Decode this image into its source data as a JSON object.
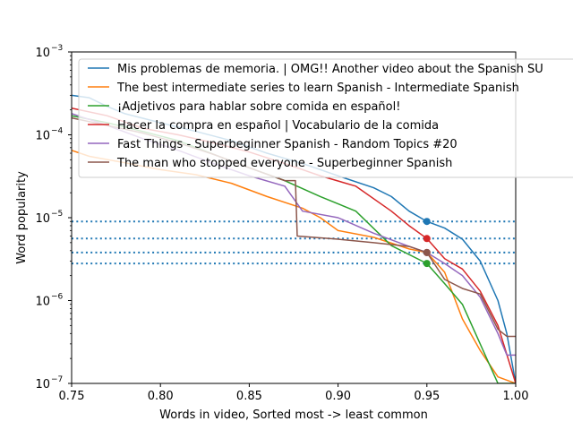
{
  "chart_data": {
    "type": "line",
    "title": "",
    "xlabel": "Words in video, Sorted most -> least common",
    "ylabel": "Word popularity",
    "xlim": [
      0.75,
      1.0
    ],
    "ylim": [
      1e-07,
      0.001
    ],
    "yscale": "log",
    "x_ticks": [
      {
        "value": 0.75,
        "label": "0.75"
      },
      {
        "value": 0.8,
        "label": "0.80"
      },
      {
        "value": 0.85,
        "label": "0.85"
      },
      {
        "value": 0.9,
        "label": "0.90"
      },
      {
        "value": 0.95,
        "label": "0.95"
      },
      {
        "value": 1.0,
        "label": "1.00"
      }
    ],
    "y_ticks": [
      {
        "value": 1e-07,
        "base": "10",
        "exp": "−7"
      },
      {
        "value": 1e-06,
        "base": "10",
        "exp": "−6"
      },
      {
        "value": 1e-05,
        "base": "10",
        "exp": "−5"
      },
      {
        "value": 0.0001,
        "base": "10",
        "exp": "−4"
      },
      {
        "value": 0.001,
        "base": "10",
        "exp": "−3"
      }
    ],
    "legend_position": "upper-right",
    "grid": false,
    "reference_lines": [
      {
        "y": 9e-06,
        "color": "#1f77b4",
        "style": "dotted"
      },
      {
        "y": 5.6e-06,
        "color": "#1f77b4",
        "style": "dotted"
      },
      {
        "y": 3.8e-06,
        "color": "#1f77b4",
        "style": "dotted"
      },
      {
        "y": 2.8e-06,
        "color": "#1f77b4",
        "style": "dotted"
      }
    ],
    "series": [
      {
        "name": "Mis problemas de memoria. | OMG!! Another video about the Spanish SU",
        "color": "#1f77b4",
        "marker": {
          "x": 0.95,
          "y": 9e-06
        },
        "points": [
          [
            0.75,
            0.0003
          ],
          [
            0.76,
            0.00028
          ],
          [
            0.77,
            0.00022
          ],
          [
            0.78,
            0.00018
          ],
          [
            0.8,
            0.00014
          ],
          [
            0.82,
            0.00011
          ],
          [
            0.84,
            8.5e-05
          ],
          [
            0.86,
            6e-05
          ],
          [
            0.88,
            4.5e-05
          ],
          [
            0.9,
            3.2e-05
          ],
          [
            0.92,
            2.3e-05
          ],
          [
            0.93,
            1.8e-05
          ],
          [
            0.94,
            1.2e-05
          ],
          [
            0.95,
            9e-06
          ],
          [
            0.96,
            7.5e-06
          ],
          [
            0.97,
            5.5e-06
          ],
          [
            0.98,
            3e-06
          ],
          [
            0.99,
            1e-06
          ],
          [
            0.995,
            4e-07
          ],
          [
            1.0,
            1e-07
          ]
        ]
      },
      {
        "name": "The best intermediate series to learn Spanish - Intermediate Spanish",
        "color": "#ff7f0e",
        "marker": {
          "x": 0.95,
          "y": 3.8e-06
        },
        "points": [
          [
            0.75,
            6.5e-05
          ],
          [
            0.76,
            5.5e-05
          ],
          [
            0.78,
            4.6e-05
          ],
          [
            0.8,
            3.8e-05
          ],
          [
            0.82,
            3.3e-05
          ],
          [
            0.84,
            2.6e-05
          ],
          [
            0.86,
            1.8e-05
          ],
          [
            0.88,
            1.3e-05
          ],
          [
            0.89,
            1e-05
          ],
          [
            0.9,
            7e-06
          ],
          [
            0.92,
            5.8e-06
          ],
          [
            0.94,
            4.2e-06
          ],
          [
            0.95,
            3.8e-06
          ],
          [
            0.96,
            2.2e-06
          ],
          [
            0.97,
            6e-07
          ],
          [
            0.98,
            2.5e-07
          ],
          [
            0.99,
            1.2e-07
          ],
          [
            1.0,
            1e-07
          ]
        ]
      },
      {
        "name": "¡Adjetivos para hablar sobre comida en español!",
        "color": "#2ca02c",
        "marker": {
          "x": 0.95,
          "y": 2.8e-06
        },
        "points": [
          [
            0.75,
            0.00017
          ],
          [
            0.77,
            0.00014
          ],
          [
            0.79,
            0.00011
          ],
          [
            0.81,
            8.5e-05
          ],
          [
            0.83,
            5.8e-05
          ],
          [
            0.85,
            4e-05
          ],
          [
            0.87,
            2.8e-05
          ],
          [
            0.89,
            1.8e-05
          ],
          [
            0.91,
            1.2e-05
          ],
          [
            0.93,
            4.6e-06
          ],
          [
            0.95,
            2.8e-06
          ],
          [
            0.96,
            1.6e-06
          ],
          [
            0.97,
            9e-07
          ],
          [
            0.98,
            3e-07
          ],
          [
            0.99,
            1e-07
          ],
          [
            1.0,
            1e-07
          ]
        ]
      },
      {
        "name": "Hacer la compra en español | Vocabulario de la comida",
        "color": "#d62728",
        "marker": {
          "x": 0.95,
          "y": 5.6e-06
        },
        "points": [
          [
            0.75,
            0.00021
          ],
          [
            0.77,
            0.00017
          ],
          [
            0.79,
            0.00012
          ],
          [
            0.81,
            0.0001
          ],
          [
            0.83,
            8e-05
          ],
          [
            0.85,
            6.2e-05
          ],
          [
            0.87,
            4.5e-05
          ],
          [
            0.89,
            3.2e-05
          ],
          [
            0.91,
            2.4e-05
          ],
          [
            0.93,
            1.2e-05
          ],
          [
            0.94,
            8e-06
          ],
          [
            0.95,
            5.6e-06
          ],
          [
            0.96,
            3.2e-06
          ],
          [
            0.97,
            2.4e-06
          ],
          [
            0.98,
            1.3e-06
          ],
          [
            0.99,
            5e-07
          ],
          [
            1.0,
            1e-07
          ]
        ]
      },
      {
        "name": "Fast Things - Superbeginner Spanish - Random Topics #20",
        "color": "#9467bd",
        "marker": {
          "x": 0.95,
          "y": 3.8e-06
        },
        "points": [
          [
            0.75,
            0.00018
          ],
          [
            0.77,
            0.00013
          ],
          [
            0.79,
            9e-05
          ],
          [
            0.81,
            6.5e-05
          ],
          [
            0.83,
            4.5e-05
          ],
          [
            0.85,
            3.2e-05
          ],
          [
            0.87,
            2.4e-05
          ],
          [
            0.88,
            1.2e-05
          ],
          [
            0.9,
            1e-05
          ],
          [
            0.92,
            6.5e-06
          ],
          [
            0.94,
            4.5e-06
          ],
          [
            0.95,
            3.8e-06
          ],
          [
            0.96,
            2.8e-06
          ],
          [
            0.97,
            2e-06
          ],
          [
            0.98,
            1.1e-06
          ],
          [
            0.99,
            4e-07
          ],
          [
            0.995,
            2.2e-07
          ],
          [
            1.0,
            2.2e-07
          ]
        ]
      },
      {
        "name": "The man who stopped everyone - Superbeginner Spanish",
        "color": "#8c564b",
        "marker": {
          "x": 0.95,
          "y": 3.8e-06
        },
        "points": [
          [
            0.75,
            0.00016
          ],
          [
            0.77,
            0.00013
          ],
          [
            0.79,
            0.000105
          ],
          [
            0.81,
            8e-05
          ],
          [
            0.83,
            5.8e-05
          ],
          [
            0.85,
            4e-05
          ],
          [
            0.87,
            2.8e-05
          ],
          [
            0.876,
            2.8e-05
          ],
          [
            0.877,
            6e-06
          ],
          [
            0.9,
            5.5e-06
          ],
          [
            0.92,
            5e-06
          ],
          [
            0.94,
            4.5e-06
          ],
          [
            0.95,
            3.8e-06
          ],
          [
            0.96,
            1.8e-06
          ],
          [
            0.97,
            1.4e-06
          ],
          [
            0.98,
            1.2e-06
          ],
          [
            0.99,
            4.5e-07
          ],
          [
            0.995,
            3.7e-07
          ],
          [
            1.0,
            3.7e-07
          ]
        ]
      }
    ]
  }
}
